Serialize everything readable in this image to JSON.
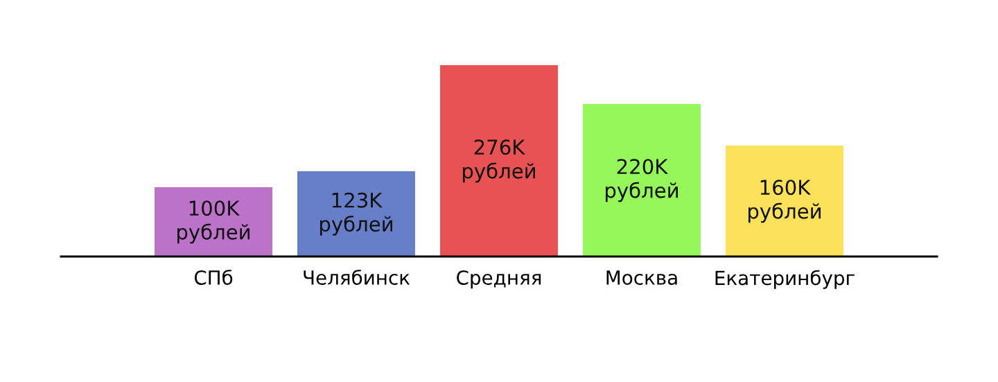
{
  "chart_data": {
    "type": "bar",
    "categories": [
      "СПб",
      "Челябинск",
      "Средняя",
      "Москва",
      "Екатеринбург"
    ],
    "values": [
      100,
      123,
      276,
      220,
      160
    ],
    "colors": [
      "#bc72c8",
      "#677ec9",
      "#e85252",
      "#96f75a",
      "#fde15a"
    ],
    "value_labels": [
      "100K\nрублей",
      "123K\nрублей",
      "276K\nрублей",
      "220K\nрублей",
      "160K\nрублей"
    ],
    "grid": false,
    "legend": false
  }
}
